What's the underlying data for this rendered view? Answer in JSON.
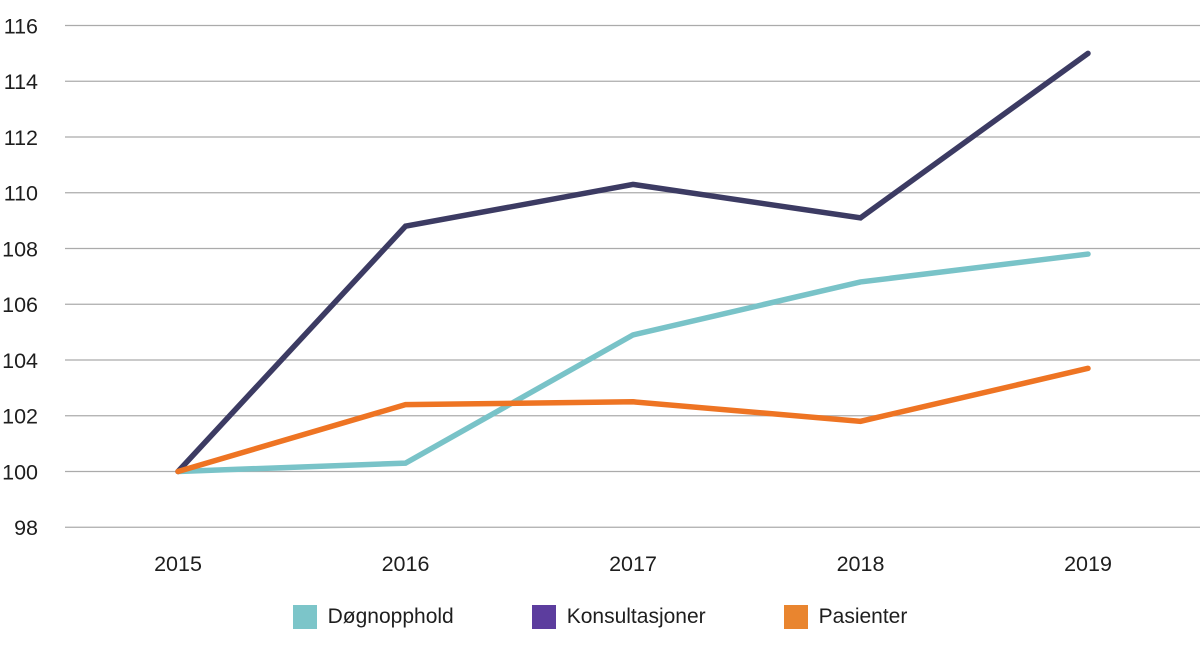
{
  "chart_data": {
    "type": "line",
    "title": "",
    "xlabel": "",
    "ylabel": "",
    "categories": [
      "2015",
      "2016",
      "2017",
      "2018",
      "2019"
    ],
    "y_ticks": [
      98,
      100,
      102,
      104,
      106,
      108,
      110,
      112,
      114,
      116
    ],
    "ylim": [
      98,
      116
    ],
    "grid": true,
    "legend_position": "bottom",
    "series": [
      {
        "name": "Døgnopphold",
        "color": "#79c3c8",
        "legend_color": "#7cc5c9",
        "values": [
          100,
          100.3,
          104.9,
          106.8,
          107.8
        ]
      },
      {
        "name": "Konsultasjoner",
        "color": "#3c3b63",
        "legend_color": "#5c3d9e",
        "values": [
          100,
          108.8,
          110.3,
          109.1,
          115.0
        ]
      },
      {
        "name": "Pasienter",
        "color": "#ee7423",
        "legend_color": "#e9852f",
        "values": [
          100,
          102.4,
          102.5,
          101.8,
          103.7
        ]
      }
    ]
  },
  "legend": {
    "items": [
      {
        "label": "Døgnopphold",
        "color": "#7cc5c9"
      },
      {
        "label": "Konsultasjoner",
        "color": "#5c3d9e"
      },
      {
        "label": "Pasienter",
        "color": "#e9852f"
      }
    ]
  },
  "colors": {
    "grid": "#ababab",
    "text": "#1e1e1e",
    "background": "#ffffff"
  }
}
